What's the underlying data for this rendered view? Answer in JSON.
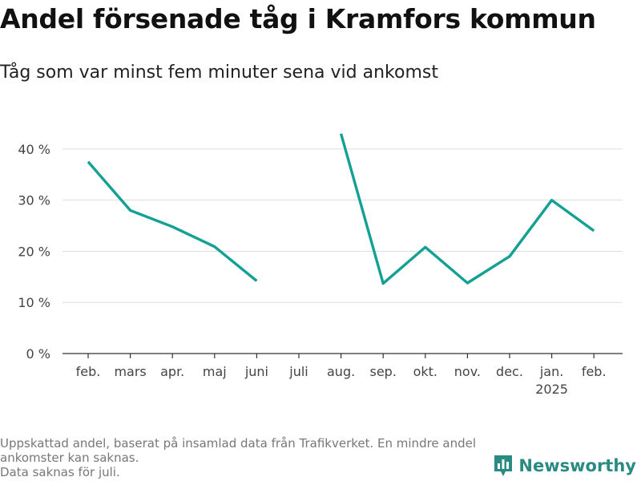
{
  "header": {
    "title": "Andel försenade tåg i Kramfors kommun",
    "subtitle": "Tåg som var minst fem minuter sena vid ankomst"
  },
  "footnote": {
    "line1": "Uppskattad andel, baserat på insamlad data från Trafikverket. En mindre andel",
    "line2": "ankomster kan saknas.",
    "line3": "Data saknas för juli."
  },
  "brand": {
    "name": "Newsworthy",
    "icon": "bar-chart-logo-icon",
    "color": "#2a8b82"
  },
  "chart_data": {
    "type": "line",
    "title": "Andel försenade tåg i Kramfors kommun",
    "subtitle": "Tåg som var minst fem minuter sena vid ankomst",
    "categories": [
      "feb.",
      "mars",
      "apr.",
      "maj",
      "juni",
      "juli",
      "aug.",
      "sep.",
      "okt.",
      "nov.",
      "dec.",
      "jan.",
      "feb."
    ],
    "category_sublabels": [
      "",
      "",
      "",
      "",
      "",
      "",
      "",
      "",
      "",
      "",
      "",
      "2025",
      ""
    ],
    "series": [
      {
        "values": [
          37.5,
          28,
          24.8,
          20.9,
          14.2,
          null,
          43,
          13.7,
          20.8,
          13.8,
          19,
          30,
          24
        ],
        "color": "#14a093"
      }
    ],
    "ylim": [
      0,
      45
    ],
    "yticks": [
      0,
      10,
      20,
      30,
      40
    ],
    "ytick_labels": [
      "0 %",
      "10 %",
      "20 %",
      "30 %",
      "40 %"
    ],
    "xlabel": "",
    "ylabel": "",
    "grid": true,
    "legend": "none"
  }
}
